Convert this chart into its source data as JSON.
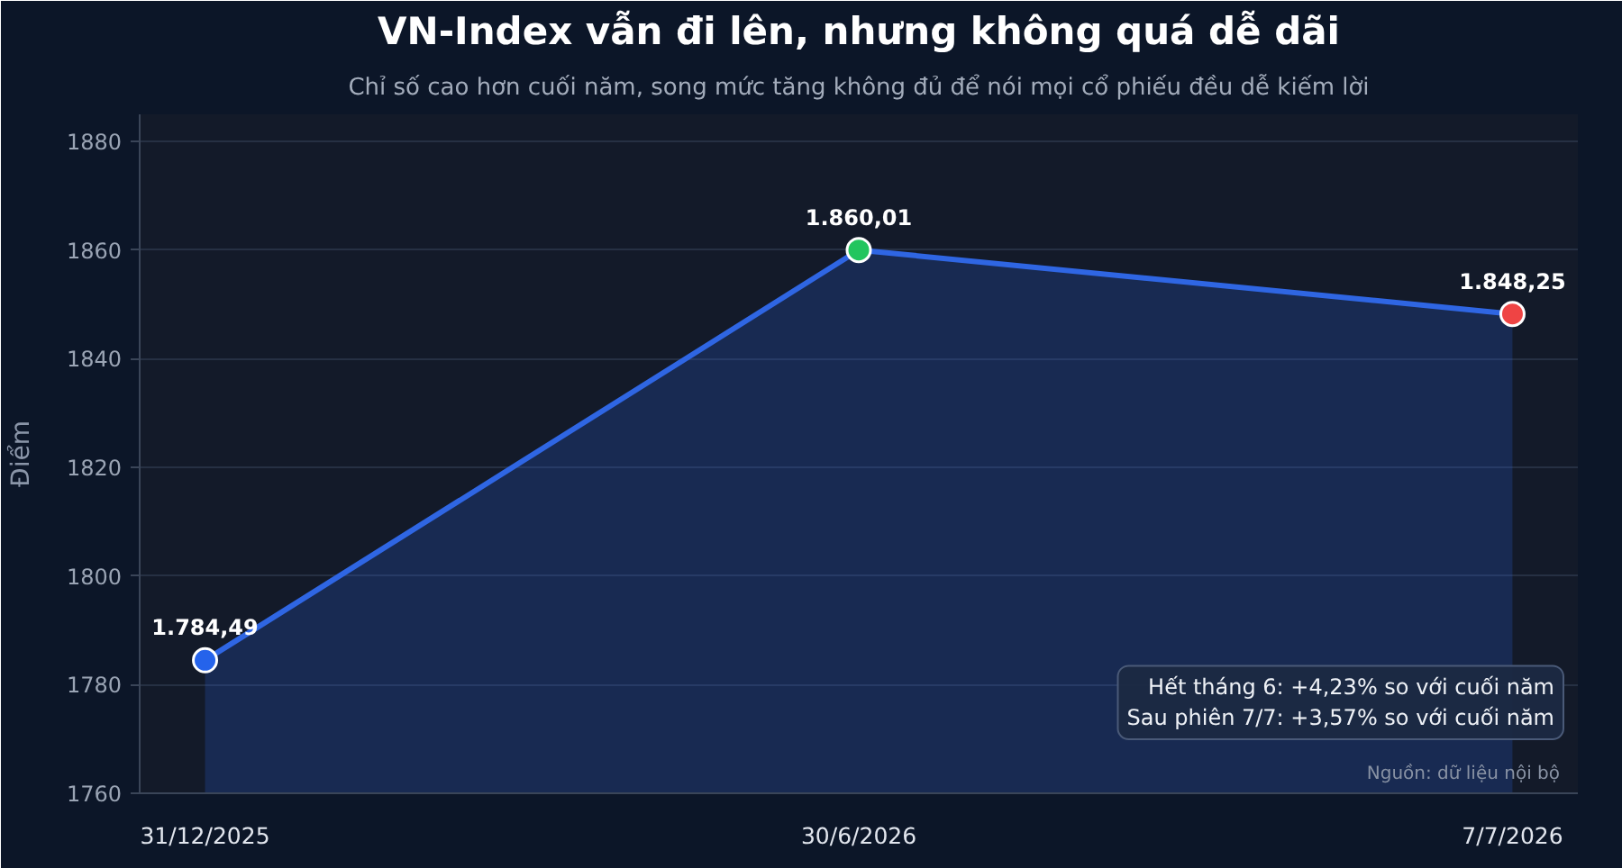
{
  "chart_data": {
    "type": "area",
    "title": "VN-Index vẫn đi lên, nhưng không quá dễ dãi",
    "subtitle": "Chỉ số cao hơn cuối năm, song mức tăng không đủ để nói mọi cổ phiếu đều dễ kiếm lời",
    "ylabel": "Điểm",
    "categories": [
      "31/12/2025",
      "30/6/2026",
      "7/7/2026"
    ],
    "values": [
      1784.49,
      1860.01,
      1848.25
    ],
    "value_labels": [
      "1.784,49",
      "1.860,01",
      "1.848,25"
    ],
    "color": "#2f66e3",
    "colors": [
      "#2563eb",
      "#22c55e",
      "#ef4444"
    ],
    "marker": "circle",
    "line_style": "solid",
    "ylim": [
      1760,
      1885
    ],
    "yticks": [
      1760,
      1780,
      1800,
      1820,
      1840,
      1860,
      1880
    ],
    "grid": "y",
    "annotations": [
      "Hết tháng 6: +4,23% so với cuối năm",
      "Sau phiên 7/7: +3,57% so với cuối năm",
      "Nguồn: dữ liệu nội bộ"
    ]
  }
}
